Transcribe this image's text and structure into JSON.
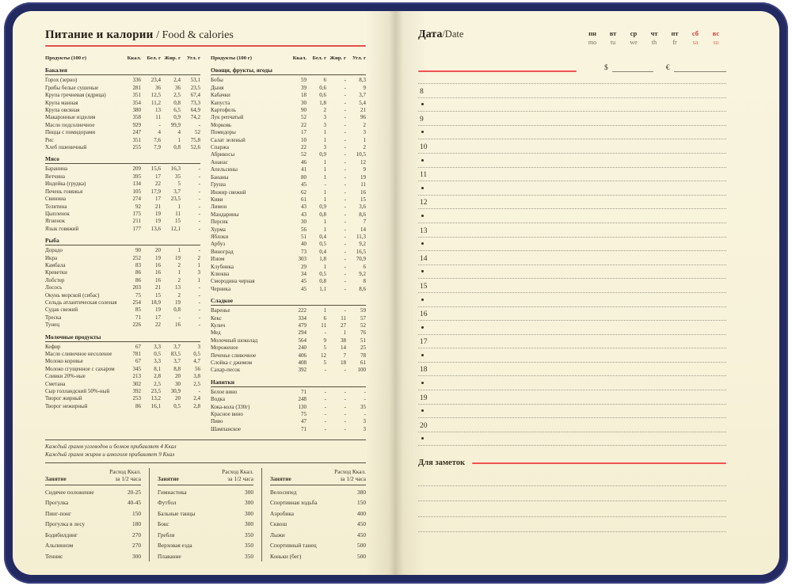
{
  "left_page": {
    "title": "Питание и калории",
    "title_suffix": "/ Food & calories",
    "food_header": {
      "product": "Продукты (100 г)",
      "kcal": "Ккал.",
      "protein": "Бел. г",
      "fat": "Жир. г",
      "carbs": "Угл. г"
    },
    "food_columns": [
      {
        "sections": [
          {
            "title": "Бакалея",
            "rows": [
              [
                "Горох (зерно)",
                "336",
                "23,4",
                "2,4",
                "53,1"
              ],
              [
                "Грибы белые сушеные",
                "281",
                "36",
                "36",
                "23,5"
              ],
              [
                "Крупа гречневая (ядрица)",
                "351",
                "12,5",
                "2,5",
                "67,4"
              ],
              [
                "Крупа манная",
                "354",
                "11,2",
                "0,8",
                "73,3"
              ],
              [
                "Крупа овсяная",
                "380",
                "13",
                "6,5",
                "64,9"
              ],
              [
                "Макаронные изделия",
                "358",
                "11",
                "0,9",
                "74,2"
              ],
              [
                "Масло подсолнечное",
                "929",
                "-",
                "99,9",
                "-"
              ],
              [
                "Пицца с помидорами",
                "247",
                "4",
                "4",
                "52"
              ],
              [
                "Рис",
                "351",
                "7,6",
                "1",
                "75,8"
              ],
              [
                "Хлеб пшеничный",
                "255",
                "7,9",
                "0,8",
                "52,6"
              ]
            ]
          },
          {
            "title": "Мясо",
            "rows": [
              [
                "Баранина",
                "209",
                "15,6",
                "16,3",
                "-"
              ],
              [
                "Ветчина",
                "395",
                "17",
                "35",
                "-"
              ],
              [
                "Индейка (грудка)",
                "134",
                "22",
                "5",
                "-"
              ],
              [
                "Печень говяжья",
                "105",
                "17,9",
                "3,7",
                "-"
              ],
              [
                "Свинина",
                "274",
                "17",
                "23,5",
                "-"
              ],
              [
                "Телятина",
                "92",
                "21",
                "1",
                "-"
              ],
              [
                "Цыпленок",
                "175",
                "19",
                "11",
                "-"
              ],
              [
                "Ягненок",
                "211",
                "19",
                "15",
                "-"
              ],
              [
                "Язык говяжий",
                "177",
                "13,6",
                "12,1",
                "-"
              ]
            ]
          },
          {
            "title": "Рыба",
            "rows": [
              [
                "Дорадо",
                "90",
                "20",
                "1",
                "-"
              ],
              [
                "Икра",
                "252",
                "19",
                "19",
                "2"
              ],
              [
                "Камбала",
                "83",
                "16",
                "2",
                "1"
              ],
              [
                "Креветки",
                "86",
                "16",
                "1",
                "3"
              ],
              [
                "Лобстер",
                "86",
                "16",
                "2",
                "1"
              ],
              [
                "Лосось",
                "203",
                "21",
                "13",
                "-"
              ],
              [
                "Окунь морской (сибас)",
                "75",
                "15",
                "2",
                "-"
              ],
              [
                "Сельдь атлантическая соленая",
                "254",
                "18,9",
                "19",
                "-"
              ],
              [
                "Судак свежий",
                "85",
                "19",
                "0,8",
                "-"
              ],
              [
                "Треска",
                "71",
                "17",
                "-",
                "-"
              ],
              [
                "Тунец",
                "226",
                "22",
                "16",
                "-"
              ]
            ]
          },
          {
            "title": "Молочные продукты",
            "rows": [
              [
                "Кефир",
                "67",
                "3,3",
                "3,7",
                "3"
              ],
              [
                "Масло сливочное несоленое",
                "781",
                "0,5",
                "83,5",
                "0,5"
              ],
              [
                "Молоко коровье",
                "67",
                "3,3",
                "3,7",
                "4,7"
              ],
              [
                "Молоко сгущенное с сахаром",
                "345",
                "8,1",
                "8,8",
                "56"
              ],
              [
                "Сливки 20%-ные",
                "213",
                "2,8",
                "20",
                "3,8"
              ],
              [
                "Сметана",
                "302",
                "2,5",
                "30",
                "2,5"
              ],
              [
                "Сыр голландский 50%-ный",
                "392",
                "23,5",
                "30,9",
                "-"
              ],
              [
                "Творог жирный",
                "253",
                "13,2",
                "20",
                "2,4"
              ],
              [
                "Творог нежирный",
                "86",
                "16,1",
                "0,5",
                "2,8"
              ]
            ]
          }
        ]
      },
      {
        "sections": [
          {
            "title": "Овощи, фрукты, ягоды",
            "rows": [
              [
                "Бобы",
                "59",
                "6",
                "-",
                "8,3"
              ],
              [
                "Дыня",
                "39",
                "0,6",
                "-",
                "9"
              ],
              [
                "Кабачки",
                "18",
                "0,6",
                "-",
                "3,7"
              ],
              [
                "Капуста",
                "30",
                "1,8",
                "-",
                "5,4"
              ],
              [
                "Картофель",
                "90",
                "2",
                "-",
                "21"
              ],
              [
                "Лук репчатый",
                "52",
                "3",
                "-",
                "96"
              ],
              [
                "Морковь",
                "22",
                "3",
                "-",
                "2"
              ],
              [
                "Помидоры",
                "17",
                "1",
                "-",
                "3"
              ],
              [
                "Салат зеленый",
                "10",
                "1",
                "-",
                "1"
              ],
              [
                "Спаржа",
                "22",
                "3",
                "-",
                "2"
              ],
              [
                "Абрикосы",
                "52",
                "0,9",
                "-",
                "10,5"
              ],
              [
                "Ананас",
                "46",
                "1",
                "-",
                "12"
              ],
              [
                "Апельсины",
                "41",
                "1",
                "-",
                "9"
              ],
              [
                "Бананы",
                "80",
                "1",
                "-",
                "19"
              ],
              [
                "Груша",
                "45",
                "-",
                "-",
                "11"
              ],
              [
                "Инжир свежий",
                "62",
                "1",
                "-",
                "16"
              ],
              [
                "Киви",
                "61",
                "1",
                "-",
                "15"
              ],
              [
                "Лимон",
                "43",
                "0,9",
                "-",
                "3,6"
              ],
              [
                "Мандарины",
                "43",
                "0,8",
                "-",
                "8,6"
              ],
              [
                "Персик",
                "30",
                "1",
                "-",
                "7"
              ],
              [
                "Хурма",
                "56",
                "1",
                "-",
                "14"
              ],
              [
                "Яблоки",
                "51",
                "0,4",
                "-",
                "11,3"
              ],
              [
                "Арбуз",
                "40",
                "0,5",
                "-",
                "9,2"
              ],
              [
                "Виноград",
                "73",
                "0,4",
                "-",
                "16,5"
              ],
              [
                "Изюм",
                "303",
                "1,8",
                "-",
                "70,9"
              ],
              [
                "Клубника",
                "29",
                "1",
                "-",
                "6"
              ],
              [
                "Клюква",
                "34",
                "0,5",
                "-",
                "9,2"
              ],
              [
                "Смородина черная",
                "45",
                "0,8",
                "-",
                "8"
              ],
              [
                "Черника",
                "45",
                "1,1",
                "-",
                "8,6"
              ]
            ]
          },
          {
            "title": "Сладкое",
            "rows": [
              [
                "Варенье",
                "222",
                "1",
                "-",
                "59"
              ],
              [
                "Кекс",
                "334",
                "6",
                "11",
                "57"
              ],
              [
                "Кулич",
                "479",
                "11",
                "27",
                "52"
              ],
              [
                "Мед",
                "294",
                "-",
                "1",
                "76"
              ],
              [
                "Молочный шоколад",
                "564",
                "9",
                "38",
                "51"
              ],
              [
                "Мороженое",
                "240",
                "5",
                "14",
                "25"
              ],
              [
                "Печенье сливочное",
                "406",
                "12",
                "7",
                "78"
              ],
              [
                "Слойка с джемом",
                "408",
                "5",
                "18",
                "61"
              ],
              [
                "Сахар-песок",
                "392",
                "-",
                "-",
                "100"
              ]
            ]
          },
          {
            "title": "Напитки",
            "rows": [
              [
                "Белое вино",
                "71",
                "-",
                "-",
                "-"
              ],
              [
                "Водка",
                "248",
                "-",
                "-",
                "-"
              ],
              [
                "Кока-кола (330г)",
                "130",
                "-",
                "-",
                "35"
              ],
              [
                "Красное вино",
                "75",
                "-",
                "-",
                "-"
              ],
              [
                "Пиво",
                "47",
                "-",
                "-",
                "3"
              ],
              [
                "Шампанское",
                "71",
                "-",
                "-",
                "3"
              ]
            ]
          }
        ]
      }
    ],
    "footnotes": [
      "Каждый грамм углеводов и белков прибавляет 4 Ккал",
      "Каждый грамм жиров и алкоголя прибавляет 9 Ккал"
    ],
    "activity_table": {
      "header_label": "Занятие",
      "header_value_lines": [
        "Расход Ккал.",
        "за 1/2 часа"
      ],
      "columns": [
        {
          "rows": [
            [
              "Сидячее положение",
              "20-25"
            ],
            [
              "Прогулка",
              "40-45"
            ],
            [
              "Пинг-понг",
              "150"
            ],
            [
              "Прогулка в лесу",
              "180"
            ],
            [
              "Бодибилдинг",
              "270"
            ],
            [
              "Альпинизм",
              "270"
            ],
            [
              "Теннис",
              "300"
            ]
          ]
        },
        {
          "rows": [
            [
              "Гимнастика",
              "300"
            ],
            [
              "Футбол",
              "300"
            ],
            [
              "Бальные танцы",
              "300"
            ],
            [
              "Бокс",
              "300"
            ],
            [
              "Гребля",
              "350"
            ],
            [
              "Верховая езда",
              "350"
            ],
            [
              "Плавание",
              "350"
            ]
          ]
        },
        {
          "rows": [
            [
              "Велосипед",
              "380"
            ],
            [
              "Спортивная ходьба",
              "150"
            ],
            [
              "Аэробика",
              "400"
            ],
            [
              "Сквош",
              "450"
            ],
            [
              "Лыжи",
              "450"
            ],
            [
              "Спортивный танец",
              "500"
            ],
            [
              "Коньки (бег)",
              "500"
            ]
          ]
        }
      ]
    }
  },
  "right_page": {
    "date_label": "Дата",
    "date_suffix": "/Date",
    "weekdays": [
      {
        "ru": "пн",
        "en": "mo",
        "red": false
      },
      {
        "ru": "вт",
        "en": "tu",
        "red": false
      },
      {
        "ru": "ср",
        "en": "we",
        "red": false
      },
      {
        "ru": "чт",
        "en": "th",
        "red": false
      },
      {
        "ru": "пт",
        "en": "fr",
        "red": false
      },
      {
        "ru": "сб",
        "en": "sa",
        "red": true
      },
      {
        "ru": "вс",
        "en": "su",
        "red": true
      }
    ],
    "currency": {
      "dollar": "$",
      "euro": "€"
    },
    "hours": [
      "8",
      "9",
      "10",
      "11",
      "12",
      "13",
      "14",
      "15",
      "16",
      "17",
      "18",
      "19",
      "20"
    ],
    "notes_label": "Для заметок",
    "notes_line_count": 4
  },
  "colors": {
    "cover_navy": "#232961",
    "page_cream": "#f8f3dc",
    "accent_red": "#ef5350",
    "weekend_red": "#d33b38",
    "ink": "#3b3426"
  }
}
